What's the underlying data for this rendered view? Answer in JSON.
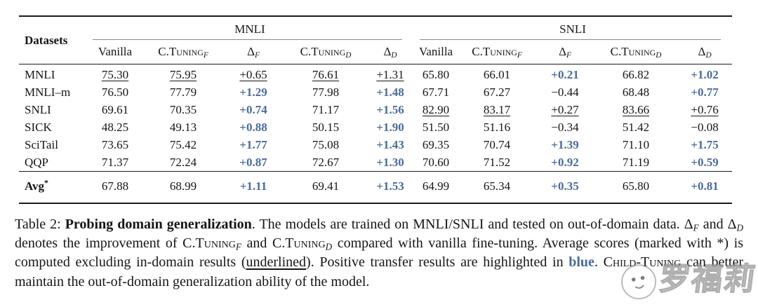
{
  "colors": {
    "accent_blue": "#4a6b9c",
    "text": "#151515",
    "rule_dark": "#1c1c1c",
    "rule_gray": "#8a8a8a"
  },
  "table": {
    "corner_label": "Datasets",
    "groups": [
      {
        "label": "MNLI"
      },
      {
        "label": "SNLI"
      }
    ],
    "subcolumns": [
      {
        "kind": "plain",
        "text": "Vanilla"
      },
      {
        "kind": "ctuning",
        "sub": "F"
      },
      {
        "kind": "delta",
        "sub": "F"
      },
      {
        "kind": "ctuning",
        "sub": "D"
      },
      {
        "kind": "delta",
        "sub": "D"
      }
    ],
    "rows": [
      {
        "label": "MNLI",
        "cells": [
          {
            "t": "75.30",
            "u": 1
          },
          {
            "t": "75.95",
            "u": 1
          },
          {
            "t": "+0.65",
            "u": 1
          },
          {
            "t": "76.61",
            "u": 1
          },
          {
            "t": "+1.31",
            "u": 1
          },
          {
            "t": "65.80"
          },
          {
            "t": "66.01"
          },
          {
            "t": "+0.21",
            "b": 1
          },
          {
            "t": "66.82"
          },
          {
            "t": "+1.02",
            "b": 1
          }
        ]
      },
      {
        "label": "MNLI–m",
        "cells": [
          {
            "t": "76.50"
          },
          {
            "t": "77.79"
          },
          {
            "t": "+1.29",
            "b": 1
          },
          {
            "t": "77.98"
          },
          {
            "t": "+1.48",
            "b": 1
          },
          {
            "t": "67.71"
          },
          {
            "t": "67.27"
          },
          {
            "t": "−0.44"
          },
          {
            "t": "68.48"
          },
          {
            "t": "+0.77",
            "b": 1
          }
        ]
      },
      {
        "label": "SNLI",
        "cells": [
          {
            "t": "69.61"
          },
          {
            "t": "70.35"
          },
          {
            "t": "+0.74",
            "b": 1
          },
          {
            "t": "71.17"
          },
          {
            "t": "+1.56",
            "b": 1
          },
          {
            "t": "82.90",
            "u": 1
          },
          {
            "t": "83.17",
            "u": 1
          },
          {
            "t": "+0.27",
            "u": 1
          },
          {
            "t": "83.66",
            "u": 1
          },
          {
            "t": "+0.76",
            "u": 1
          }
        ]
      },
      {
        "label": "SICK",
        "cells": [
          {
            "t": "48.25"
          },
          {
            "t": "49.13"
          },
          {
            "t": "+0.88",
            "b": 1
          },
          {
            "t": "50.15"
          },
          {
            "t": "+1.90",
            "b": 1
          },
          {
            "t": "51.50"
          },
          {
            "t": "51.16"
          },
          {
            "t": "−0.34"
          },
          {
            "t": "51.42"
          },
          {
            "t": "−0.08"
          }
        ]
      },
      {
        "label": "SciTail",
        "cells": [
          {
            "t": "73.65"
          },
          {
            "t": "75.42"
          },
          {
            "t": "+1.77",
            "b": 1
          },
          {
            "t": "75.08"
          },
          {
            "t": "+1.43",
            "b": 1
          },
          {
            "t": "69.35"
          },
          {
            "t": "70.74"
          },
          {
            "t": "+1.39",
            "b": 1
          },
          {
            "t": "71.10"
          },
          {
            "t": "+1.75",
            "b": 1
          }
        ]
      },
      {
        "label": "QQP",
        "cells": [
          {
            "t": "71.37"
          },
          {
            "t": "72.24"
          },
          {
            "t": "+0.87",
            "b": 1
          },
          {
            "t": "72.67"
          },
          {
            "t": "+1.30",
            "b": 1
          },
          {
            "t": "70.60"
          },
          {
            "t": "71.52"
          },
          {
            "t": "+0.92",
            "b": 1
          },
          {
            "t": "71.19"
          },
          {
            "t": "+0.59",
            "b": 1
          }
        ]
      },
      {
        "label": "Avg",
        "label_sup": "*",
        "bold": true,
        "avg": true,
        "cells": [
          {
            "t": "67.88"
          },
          {
            "t": "68.99"
          },
          {
            "t": "+1.11",
            "b": 1
          },
          {
            "t": "69.41"
          },
          {
            "t": "+1.53",
            "b": 1
          },
          {
            "t": "64.99"
          },
          {
            "t": "65.34"
          },
          {
            "t": "+0.35",
            "b": 1
          },
          {
            "t": "65.80"
          },
          {
            "t": "+0.81",
            "b": 1
          }
        ]
      }
    ]
  },
  "caption": {
    "segments": [
      {
        "kind": "text",
        "t": "Table 2: "
      },
      {
        "kind": "bold",
        "t": "Probing domain generalization"
      },
      {
        "kind": "text",
        "t": ". The models are trained on MNLI/SNLI and tested on out-of-domain data. "
      },
      {
        "kind": "delta",
        "sub": "F"
      },
      {
        "kind": "text",
        "t": " and "
      },
      {
        "kind": "delta",
        "sub": "D"
      },
      {
        "kind": "text",
        "t": " denotes the improvement of "
      },
      {
        "kind": "ctuning",
        "sub": "F"
      },
      {
        "kind": "text",
        "t": " and "
      },
      {
        "kind": "ctuning",
        "sub": "D"
      },
      {
        "kind": "text",
        "t": " compared with vanilla fine-tuning. Average scores (marked with *) is computed excluding in-domain results ("
      },
      {
        "kind": "underline",
        "t": "underlined"
      },
      {
        "kind": "text",
        "t": "). Positive transfer results are highlighted in "
      },
      {
        "kind": "blue",
        "t": "blue"
      },
      {
        "kind": "text",
        "t": ". "
      },
      {
        "kind": "smallcaps",
        "t": "Child-Tuning"
      },
      {
        "kind": "text",
        "t": " can better maintain the out-of-domain generalization ability of the model."
      }
    ]
  },
  "watermark": {
    "icon": "wechat-emoji-face",
    "text": "罗福莉"
  }
}
